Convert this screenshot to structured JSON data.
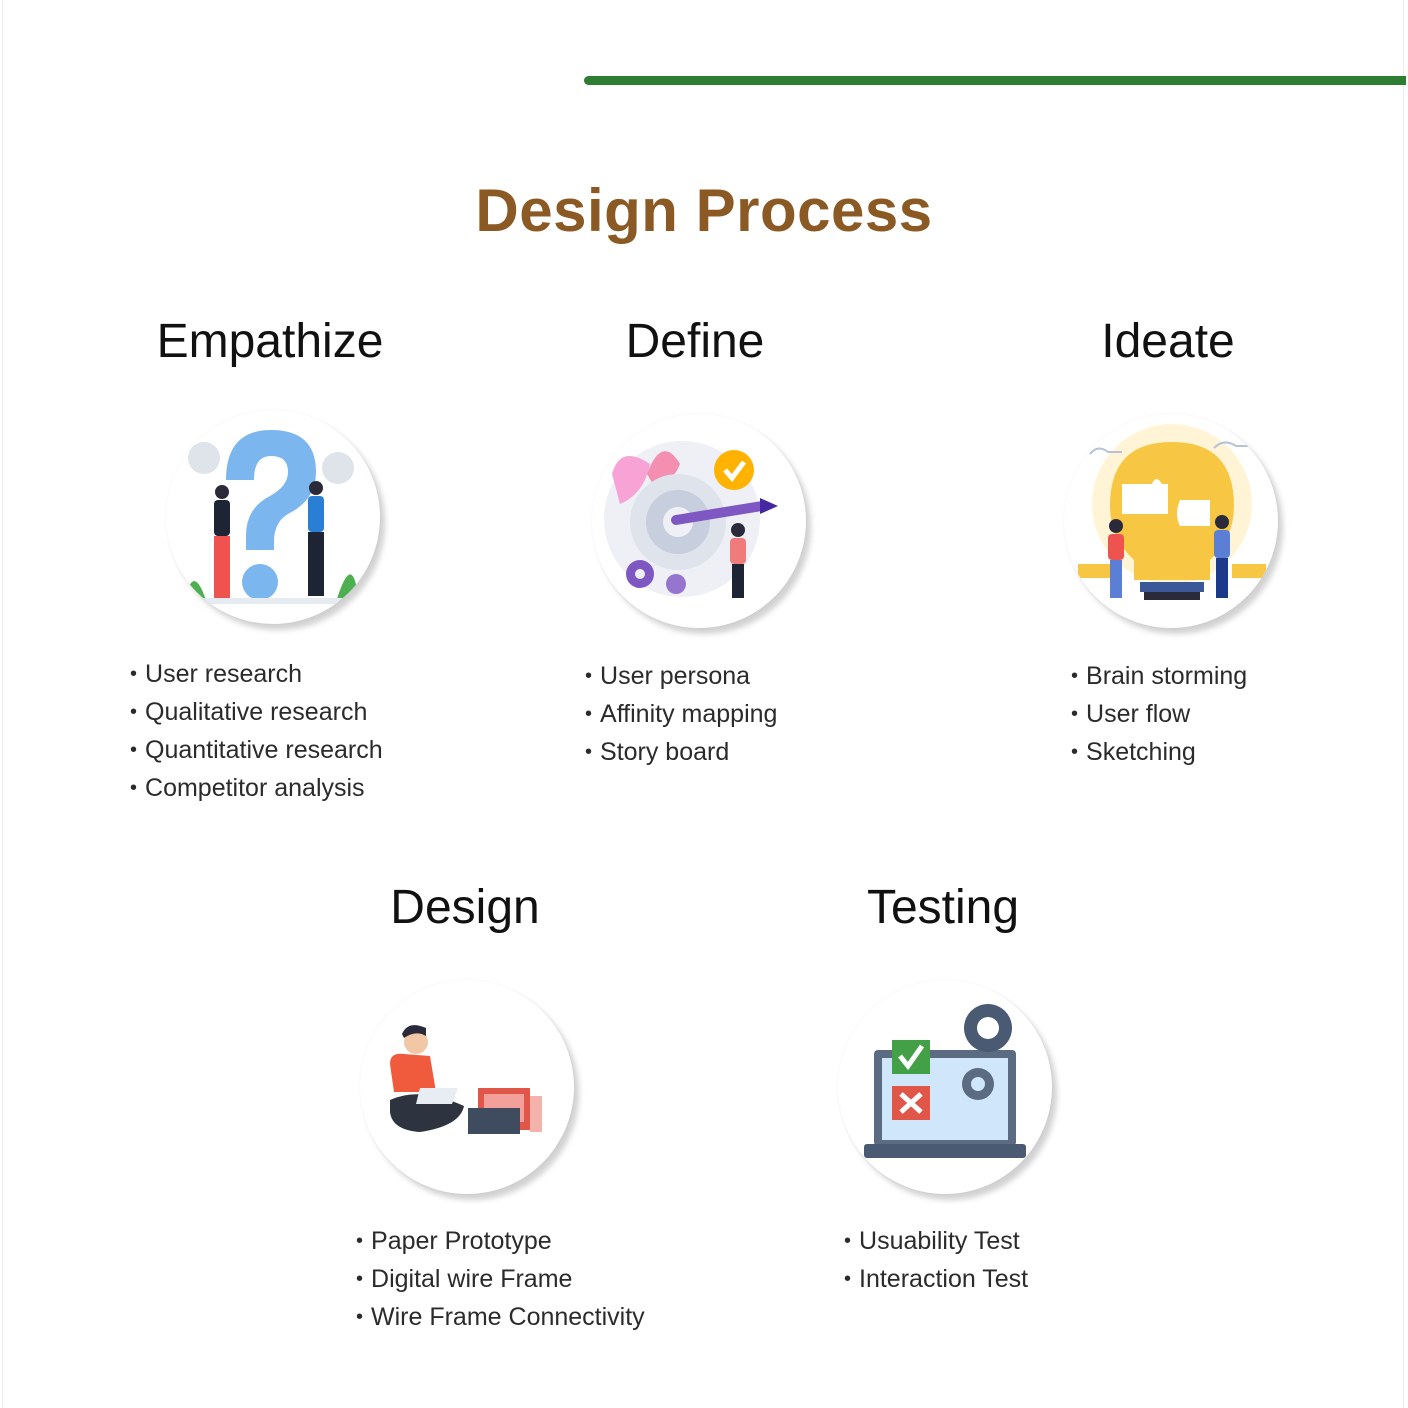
{
  "title": "Design Process",
  "colors": {
    "accent_bar": "#2e7d32",
    "title": "#8b5a24",
    "heading": "#111111",
    "text": "#2b2b2b"
  },
  "stages": [
    {
      "heading": "Empathize",
      "icon": "question-people-icon",
      "items": [
        "User research",
        "Qualitative research",
        "Quantitative research",
        "Competitor analysis"
      ]
    },
    {
      "heading": "Define",
      "icon": "target-dart-icon",
      "items": [
        "User persona",
        "Affinity mapping",
        "Story board"
      ]
    },
    {
      "heading": "Ideate",
      "icon": "lightbulb-puzzle-icon",
      "items": [
        "Brain storming",
        "User flow",
        "Sketching"
      ]
    },
    {
      "heading": "Design",
      "icon": "designer-laptop-icon",
      "items": [
        "Paper Prototype",
        "Digital wire Frame",
        "Wire Frame Connectivity"
      ]
    },
    {
      "heading": "Testing",
      "icon": "testing-gears-icon",
      "items": [
        "Usuability Test",
        "Interaction Test"
      ]
    }
  ]
}
